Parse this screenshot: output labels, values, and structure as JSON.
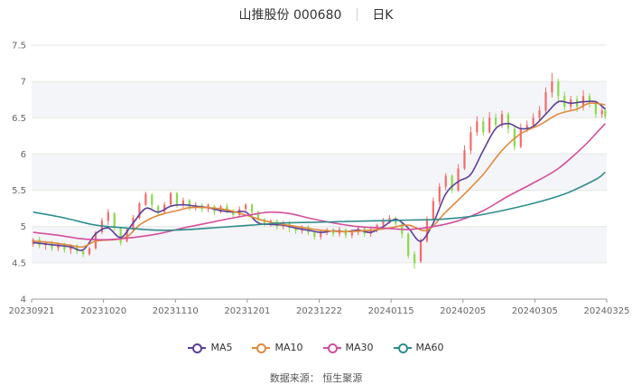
{
  "header": {
    "title": "山推股份 000680",
    "period": "日K"
  },
  "source_text": "数据来源：  恒生聚源",
  "colors": {
    "up": "#f26b6b",
    "down": "#8bd94a",
    "grid": "#e6e6e6",
    "band": "#f4f5f8"
  },
  "chart_data": {
    "type": "candlestick",
    "y_ticks": [
      4,
      4.5,
      5,
      5.5,
      6,
      6.5,
      7,
      7.5
    ],
    "x_tick_labels": [
      "20230921",
      "20231020",
      "20231110",
      "20231201",
      "20231222",
      "20240115",
      "20240205",
      "20240305",
      "20240325"
    ],
    "ylim": [
      4,
      7.5
    ],
    "series": [
      {
        "name": "MA5",
        "color": "#5b3f9a"
      },
      {
        "name": "MA10",
        "color": "#e08a3c"
      },
      {
        "name": "MA30",
        "color": "#d44f9c"
      },
      {
        "name": "MA60",
        "color": "#2f8d8d"
      }
    ],
    "ma_values": {
      "MA5": [
        [
          0,
          4.78
        ],
        [
          4,
          4.76
        ],
        [
          8,
          4.74
        ],
        [
          12,
          4.72
        ],
        [
          16,
          4.68
        ],
        [
          20,
          4.9
        ],
        [
          24,
          4.98
        ],
        [
          28,
          4.85
        ],
        [
          32,
          5.05
        ],
        [
          36,
          5.25
        ],
        [
          40,
          5.2
        ],
        [
          44,
          5.28
        ],
        [
          48,
          5.3
        ],
        [
          52,
          5.28
        ],
        [
          56,
          5.26
        ],
        [
          60,
          5.22
        ],
        [
          64,
          5.2
        ],
        [
          68,
          5.2
        ],
        [
          72,
          5.05
        ],
        [
          76,
          5.03
        ],
        [
          80,
          5.02
        ],
        [
          84,
          4.98
        ],
        [
          88,
          4.95
        ],
        [
          92,
          4.92
        ],
        [
          96,
          4.94
        ],
        [
          100,
          4.93
        ],
        [
          104,
          4.95
        ],
        [
          108,
          4.92
        ],
        [
          112,
          5.0
        ],
        [
          116,
          5.1
        ],
        [
          120,
          4.98
        ],
        [
          124,
          4.8
        ],
        [
          128,
          5.05
        ],
        [
          132,
          5.45
        ],
        [
          136,
          5.62
        ],
        [
          140,
          5.72
        ],
        [
          144,
          6.05
        ],
        [
          148,
          6.35
        ],
        [
          152,
          6.42
        ],
        [
          156,
          6.35
        ],
        [
          160,
          6.38
        ],
        [
          164,
          6.55
        ],
        [
          168,
          6.72
        ],
        [
          172,
          6.7
        ],
        [
          176,
          6.72
        ],
        [
          180,
          6.72
        ],
        [
          183,
          6.62
        ]
      ],
      "MA10": [
        [
          0,
          4.8
        ],
        [
          6,
          4.78
        ],
        [
          12,
          4.74
        ],
        [
          16,
          4.72
        ],
        [
          20,
          4.8
        ],
        [
          26,
          4.82
        ],
        [
          30,
          4.86
        ],
        [
          34,
          5.02
        ],
        [
          38,
          5.12
        ],
        [
          42,
          5.18
        ],
        [
          46,
          5.22
        ],
        [
          50,
          5.26
        ],
        [
          56,
          5.26
        ],
        [
          62,
          5.23
        ],
        [
          68,
          5.16
        ],
        [
          74,
          5.08
        ],
        [
          80,
          5.03
        ],
        [
          86,
          4.99
        ],
        [
          92,
          4.95
        ],
        [
          100,
          4.93
        ],
        [
          108,
          4.95
        ],
        [
          114,
          4.98
        ],
        [
          120,
          5.02
        ],
        [
          126,
          4.95
        ],
        [
          132,
          5.2
        ],
        [
          138,
          5.45
        ],
        [
          144,
          5.72
        ],
        [
          150,
          6.05
        ],
        [
          156,
          6.28
        ],
        [
          162,
          6.4
        ],
        [
          168,
          6.55
        ],
        [
          174,
          6.62
        ],
        [
          178,
          6.7
        ],
        [
          183,
          6.68
        ]
      ],
      "MA30": [
        [
          0,
          4.92
        ],
        [
          8,
          4.88
        ],
        [
          16,
          4.83
        ],
        [
          24,
          4.82
        ],
        [
          32,
          4.85
        ],
        [
          40,
          4.9
        ],
        [
          48,
          4.98
        ],
        [
          56,
          5.05
        ],
        [
          64,
          5.12
        ],
        [
          72,
          5.18
        ],
        [
          76,
          5.2
        ],
        [
          82,
          5.18
        ],
        [
          88,
          5.12
        ],
        [
          96,
          5.05
        ],
        [
          104,
          5.0
        ],
        [
          112,
          4.98
        ],
        [
          120,
          4.96
        ],
        [
          128,
          5.0
        ],
        [
          136,
          5.08
        ],
        [
          144,
          5.22
        ],
        [
          152,
          5.42
        ],
        [
          160,
          5.6
        ],
        [
          168,
          5.8
        ],
        [
          176,
          6.1
        ],
        [
          180,
          6.28
        ],
        [
          183,
          6.42
        ]
      ],
      "MA60": [
        [
          0,
          5.2
        ],
        [
          10,
          5.12
        ],
        [
          20,
          5.02
        ],
        [
          30,
          4.98
        ],
        [
          40,
          4.95
        ],
        [
          50,
          4.96
        ],
        [
          60,
          4.99
        ],
        [
          70,
          5.02
        ],
        [
          80,
          5.05
        ],
        [
          90,
          5.06
        ],
        [
          100,
          5.07
        ],
        [
          110,
          5.08
        ],
        [
          120,
          5.09
        ],
        [
          130,
          5.1
        ],
        [
          140,
          5.14
        ],
        [
          150,
          5.22
        ],
        [
          160,
          5.32
        ],
        [
          170,
          5.45
        ],
        [
          180,
          5.65
        ],
        [
          183,
          5.75
        ]
      ]
    },
    "candles": [
      [
        0,
        4.76,
        4.82,
        4.72,
        4.84
      ],
      [
        2,
        4.82,
        4.74,
        4.7,
        4.86
      ],
      [
        4,
        4.74,
        4.78,
        4.68,
        4.8
      ],
      [
        6,
        4.78,
        4.7,
        4.66,
        4.8
      ],
      [
        8,
        4.7,
        4.76,
        4.66,
        4.78
      ],
      [
        10,
        4.76,
        4.68,
        4.64,
        4.78
      ],
      [
        12,
        4.68,
        4.74,
        4.62,
        4.76
      ],
      [
        14,
        4.74,
        4.66,
        4.62,
        4.76
      ],
      [
        16,
        4.66,
        4.62,
        4.58,
        4.68
      ],
      [
        18,
        4.62,
        4.7,
        4.6,
        4.72
      ],
      [
        20,
        4.7,
        4.92,
        4.68,
        4.94
      ],
      [
        22,
        4.92,
        5.08,
        4.9,
        5.12
      ],
      [
        24,
        5.08,
        5.2,
        5.02,
        5.24
      ],
      [
        26,
        5.18,
        4.98,
        4.94,
        5.2
      ],
      [
        28,
        4.98,
        4.78,
        4.74,
        5.0
      ],
      [
        30,
        4.8,
        4.96,
        4.78,
        4.98
      ],
      [
        32,
        4.96,
        5.12,
        4.94,
        5.16
      ],
      [
        34,
        5.12,
        5.32,
        5.1,
        5.34
      ],
      [
        36,
        5.3,
        5.45,
        5.28,
        5.48
      ],
      [
        38,
        5.44,
        5.3,
        5.24,
        5.46
      ],
      [
        40,
        5.28,
        5.2,
        5.16,
        5.3
      ],
      [
        42,
        5.2,
        5.3,
        5.18,
        5.34
      ],
      [
        44,
        5.3,
        5.46,
        5.28,
        5.48
      ],
      [
        46,
        5.46,
        5.3,
        5.26,
        5.48
      ],
      [
        48,
        5.3,
        5.36,
        5.26,
        5.4
      ],
      [
        50,
        5.36,
        5.26,
        5.22,
        5.38
      ],
      [
        52,
        5.26,
        5.3,
        5.22,
        5.34
      ],
      [
        54,
        5.3,
        5.24,
        5.2,
        5.32
      ],
      [
        56,
        5.24,
        5.3,
        5.2,
        5.32
      ],
      [
        58,
        5.28,
        5.2,
        5.16,
        5.3
      ],
      [
        60,
        5.2,
        5.28,
        5.18,
        5.3
      ],
      [
        62,
        5.28,
        5.22,
        5.18,
        5.32
      ],
      [
        64,
        5.22,
        5.16,
        5.12,
        5.24
      ],
      [
        66,
        5.16,
        5.24,
        5.14,
        5.28
      ],
      [
        68,
        5.24,
        5.3,
        5.2,
        5.32
      ],
      [
        70,
        5.3,
        5.2,
        5.14,
        5.32
      ],
      [
        72,
        5.2,
        5.1,
        5.06,
        5.22
      ],
      [
        74,
        5.1,
        5.04,
        5.0,
        5.12
      ],
      [
        76,
        5.04,
        5.08,
        5.0,
        5.1
      ],
      [
        78,
        5.08,
        5.0,
        4.96,
        5.1
      ],
      [
        80,
        5.0,
        5.06,
        4.96,
        5.08
      ],
      [
        82,
        5.06,
        4.98,
        4.92,
        5.08
      ],
      [
        84,
        4.98,
        4.94,
        4.9,
        5.0
      ],
      [
        86,
        4.94,
        5.0,
        4.9,
        5.02
      ],
      [
        88,
        5.0,
        4.92,
        4.88,
        5.02
      ],
      [
        90,
        4.92,
        4.86,
        4.82,
        4.94
      ],
      [
        92,
        4.86,
        4.92,
        4.82,
        4.96
      ],
      [
        94,
        4.92,
        4.96,
        4.88,
        4.98
      ],
      [
        96,
        4.96,
        4.9,
        4.86,
        4.98
      ],
      [
        98,
        4.9,
        4.96,
        4.86,
        5.0
      ],
      [
        100,
        4.96,
        4.88,
        4.84,
        4.98
      ],
      [
        102,
        4.88,
        4.92,
        4.84,
        4.96
      ],
      [
        104,
        4.92,
        4.98,
        4.88,
        5.0
      ],
      [
        106,
        4.98,
        4.9,
        4.86,
        5.0
      ],
      [
        108,
        4.9,
        4.96,
        4.86,
        4.98
      ],
      [
        110,
        4.96,
        5.02,
        4.92,
        5.04
      ],
      [
        112,
        5.02,
        5.08,
        4.98,
        5.12
      ],
      [
        114,
        5.08,
        5.12,
        5.04,
        5.16
      ],
      [
        116,
        5.12,
        5.04,
        5.0,
        5.14
      ],
      [
        118,
        5.04,
        4.9,
        4.84,
        5.06
      ],
      [
        120,
        4.9,
        4.6,
        4.56,
        4.92
      ],
      [
        122,
        4.62,
        4.5,
        4.42,
        4.66
      ],
      [
        124,
        4.52,
        4.8,
        4.5,
        4.84
      ],
      [
        126,
        4.8,
        5.1,
        4.78,
        5.14
      ],
      [
        128,
        5.1,
        5.35,
        5.08,
        5.4
      ],
      [
        130,
        5.34,
        5.55,
        5.3,
        5.6
      ],
      [
        132,
        5.55,
        5.7,
        5.5,
        5.74
      ],
      [
        134,
        5.7,
        5.5,
        5.46,
        5.72
      ],
      [
        136,
        5.5,
        5.8,
        5.48,
        5.86
      ],
      [
        138,
        5.8,
        6.05,
        5.78,
        6.12
      ],
      [
        140,
        6.05,
        6.3,
        6.0,
        6.38
      ],
      [
        142,
        6.3,
        6.45,
        6.25,
        6.52
      ],
      [
        144,
        6.45,
        6.3,
        6.25,
        6.5
      ],
      [
        146,
        6.3,
        6.5,
        6.28,
        6.58
      ],
      [
        148,
        6.5,
        6.4,
        6.36,
        6.56
      ],
      [
        150,
        6.4,
        6.55,
        6.36,
        6.6
      ],
      [
        152,
        6.55,
        6.35,
        6.28,
        6.58
      ],
      [
        154,
        6.35,
        6.1,
        6.05,
        6.4
      ],
      [
        156,
        6.1,
        6.35,
        6.08,
        6.42
      ],
      [
        158,
        6.35,
        6.4,
        6.3,
        6.46
      ],
      [
        160,
        6.4,
        6.5,
        6.36,
        6.56
      ],
      [
        162,
        6.5,
        6.6,
        6.46,
        6.66
      ],
      [
        164,
        6.6,
        6.85,
        6.55,
        6.92
      ],
      [
        166,
        6.85,
        7.0,
        6.78,
        7.12
      ],
      [
        168,
        7.0,
        6.8,
        6.7,
        7.04
      ],
      [
        170,
        6.8,
        6.65,
        6.6,
        6.86
      ],
      [
        172,
        6.65,
        6.75,
        6.6,
        6.8
      ],
      [
        174,
        6.75,
        6.65,
        6.58,
        6.8
      ],
      [
        176,
        6.65,
        6.8,
        6.6,
        6.88
      ],
      [
        178,
        6.8,
        6.7,
        6.64,
        6.84
      ],
      [
        180,
        6.7,
        6.55,
        6.5,
        6.74
      ],
      [
        182,
        6.55,
        6.6,
        6.5,
        6.66
      ],
      [
        183,
        6.6,
        6.52,
        6.48,
        6.64
      ]
    ]
  }
}
